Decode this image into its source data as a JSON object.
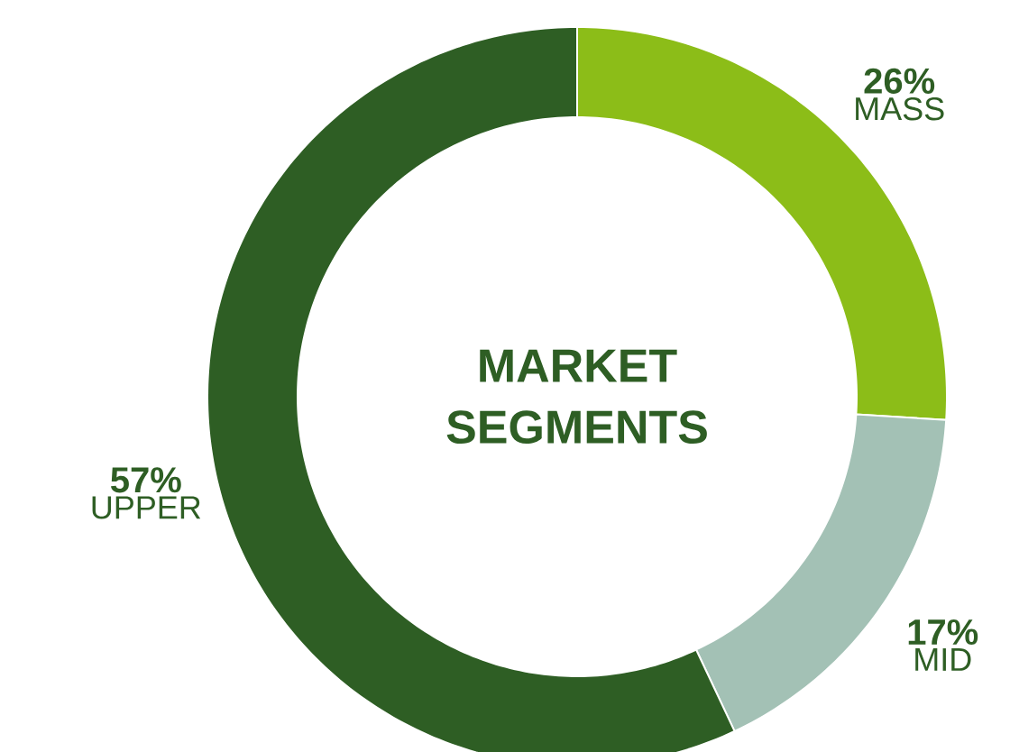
{
  "chart_data": {
    "type": "donut",
    "title": "MARKET SEGMENTS",
    "categories": [
      "MASS",
      "MID",
      "UPPER"
    ],
    "values": [
      26,
      17,
      57
    ],
    "value_labels": [
      "26%",
      "17%",
      "57%"
    ],
    "colors": [
      "#8cbd18",
      "#a3c1b5",
      "#2e5e24"
    ]
  }
}
